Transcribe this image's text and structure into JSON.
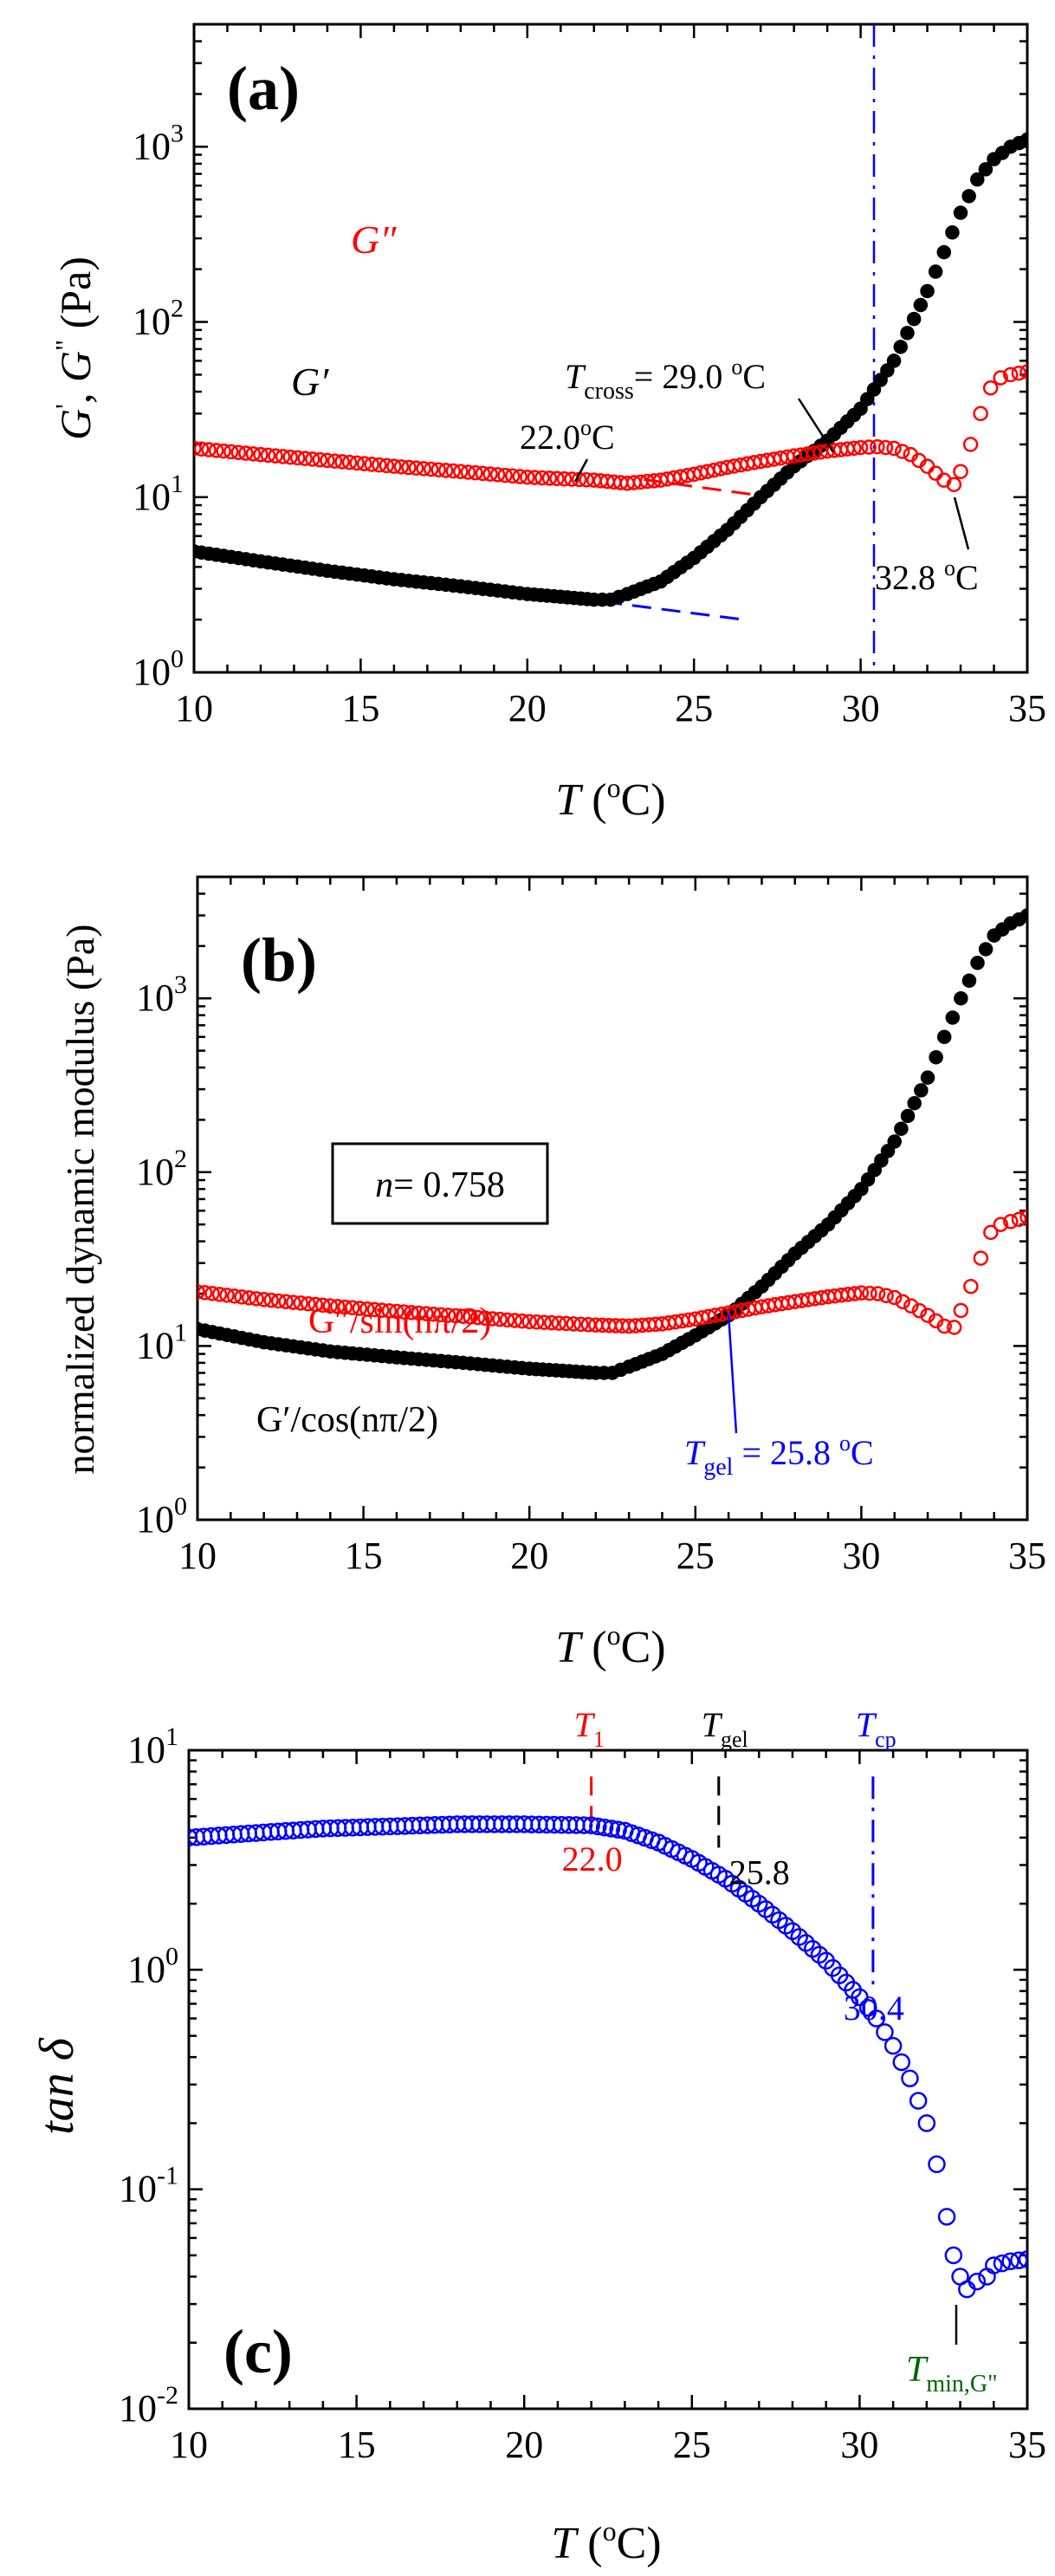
{
  "chart_data": [
    {
      "type": "scatter",
      "panel_label": "(a)",
      "xlabel": {
        "main": "T",
        "unit": " (",
        "sup": "o",
        "end": "C)"
      },
      "ylabel": {
        "g1": "G",
        "p1": "'",
        "sep": ", ",
        "g2": "G",
        "p2": "\"",
        "unit": " (Pa)"
      },
      "xlim": [
        10,
        35
      ],
      "ylim": [
        1,
        5000
      ],
      "yscale": "log",
      "xticks": [
        10,
        15,
        20,
        25,
        30,
        35
      ],
      "ytick_labels": [
        {
          "base": "10",
          "exp": "0",
          "value": 1
        },
        {
          "base": "10",
          "exp": "1",
          "value": 10
        },
        {
          "base": "10",
          "exp": "2",
          "value": 100
        },
        {
          "base": "10",
          "exp": "3",
          "value": 1000
        }
      ],
      "series": [
        {
          "name": "G′",
          "marker": "filled-circle",
          "color": "#000000",
          "points": [
            [
              10,
              4.9
            ],
            [
              12,
              4.3
            ],
            [
              14,
              3.8
            ],
            [
              16,
              3.4
            ],
            [
              18,
              3.1
            ],
            [
              20,
              2.8
            ],
            [
              21,
              2.7
            ],
            [
              22,
              2.6
            ],
            [
              22.5,
              2.6
            ],
            [
              23,
              2.8
            ],
            [
              24,
              3.3
            ],
            [
              25,
              4.5
            ],
            [
              26,
              6.5
            ],
            [
              27,
              10
            ],
            [
              28,
              15
            ],
            [
              29,
              21
            ],
            [
              30,
              32
            ],
            [
              31,
              60
            ],
            [
              32,
              150
            ],
            [
              32.5,
              250
            ],
            [
              33,
              420
            ],
            [
              33.5,
              650
            ],
            [
              34,
              850
            ],
            [
              34.5,
              1000
            ],
            [
              35,
              1100
            ]
          ]
        },
        {
          "name": "G″",
          "marker": "open-circle",
          "color": "#ff0000",
          "points": [
            [
              10,
              19
            ],
            [
              12,
              17.5
            ],
            [
              14,
              16.2
            ],
            [
              16,
              15
            ],
            [
              18,
              14
            ],
            [
              20,
              13
            ],
            [
              22,
              12.5
            ],
            [
              23,
              12
            ],
            [
              24,
              12.5
            ],
            [
              25,
              13.5
            ],
            [
              26,
              14.8
            ],
            [
              27,
              16
            ],
            [
              28,
              17.2
            ],
            [
              29,
              18.3
            ],
            [
              30,
              19.2
            ],
            [
              30.5,
              19.4
            ],
            [
              31,
              19
            ],
            [
              31.5,
              17.5
            ],
            [
              32,
              15
            ],
            [
              32.5,
              12.5
            ],
            [
              32.8,
              11.8
            ],
            [
              33,
              14
            ],
            [
              33.3,
              20
            ],
            [
              33.6,
              30
            ],
            [
              33.9,
              42
            ],
            [
              34.2,
              48
            ],
            [
              34.5,
              50
            ],
            [
              35,
              52
            ]
          ]
        }
      ],
      "series_labels": [
        {
          "text": "G″",
          "color": "#ff0000",
          "series": "G″"
        },
        {
          "text": "G′",
          "color": "#000000",
          "series": "G′"
        }
      ],
      "fit_lines": [
        {
          "color": "#0000ff",
          "style": "dashed",
          "from": [
            10,
            5.0
          ],
          "to": [
            26.5,
            2.0
          ]
        },
        {
          "color": "#ff0000",
          "style": "dashed",
          "from": [
            23.5,
            12.6
          ],
          "to": [
            27,
            10.2
          ]
        }
      ],
      "vlines": [
        {
          "x": 30.4,
          "color": "#0000ff",
          "style": "dash-dot"
        }
      ],
      "annotations": {
        "t1": "22.0",
        "t1_unit": "o",
        "t1_end": "C",
        "tcross_T": "T",
        "tcross_sub": "cross",
        "tcross_val": "= 29.0 ",
        "tcross_sup": "o",
        "tcross_end": "C",
        "tmin": "32.8 ",
        "tmin_sup": "o",
        "tmin_end": "C"
      }
    },
    {
      "type": "scatter",
      "panel_label": "(b)",
      "xlabel": {
        "main": "T",
        "unit": " (",
        "sup": "o",
        "end": "C)"
      },
      "ylabel": "normalized dynamic modulus (Pa)",
      "xlim": [
        10,
        35
      ],
      "ylim": [
        1,
        5000
      ],
      "yscale": "log",
      "xticks": [
        10,
        15,
        20,
        25,
        30,
        35
      ],
      "ytick_labels": [
        {
          "base": "10",
          "exp": "0",
          "value": 1
        },
        {
          "base": "10",
          "exp": "1",
          "value": 10
        },
        {
          "base": "10",
          "exp": "2",
          "value": 100
        },
        {
          "base": "10",
          "exp": "3",
          "value": 1000
        }
      ],
      "series": [
        {
          "name": "G′/cos(nπ/2)",
          "marker": "filled-circle",
          "color": "#000000",
          "points": [
            [
              10,
              12.5
            ],
            [
              12,
              10.5
            ],
            [
              14,
              9.3
            ],
            [
              16,
              8.6
            ],
            [
              18,
              8.0
            ],
            [
              20,
              7.4
            ],
            [
              21,
              7.2
            ],
            [
              22,
              7.0
            ],
            [
              22.5,
              7.0
            ],
            [
              23,
              7.6
            ],
            [
              24,
              9
            ],
            [
              25,
              11.5
            ],
            [
              26,
              15
            ],
            [
              27,
              22
            ],
            [
              28,
              34
            ],
            [
              29,
              50
            ],
            [
              30,
              80
            ],
            [
              31,
              150
            ],
            [
              32,
              350
            ],
            [
              32.5,
              600
            ],
            [
              33,
              1000
            ],
            [
              33.5,
              1600
            ],
            [
              34,
              2300
            ],
            [
              34.5,
              2700
            ],
            [
              35,
              3000
            ]
          ]
        },
        {
          "name": "G″/sin(nπ/2)",
          "marker": "open-circle",
          "color": "#ff0000",
          "points": [
            [
              10,
              20.5
            ],
            [
              12,
              18.5
            ],
            [
              14,
              17
            ],
            [
              16,
              15.8
            ],
            [
              18,
              14.8
            ],
            [
              20,
              13.8
            ],
            [
              22,
              13.2
            ],
            [
              23,
              13
            ],
            [
              24,
              13.4
            ],
            [
              25,
              14.3
            ],
            [
              26,
              15.5
            ],
            [
              27,
              16.8
            ],
            [
              28,
              18
            ],
            [
              29,
              19.2
            ],
            [
              30,
              20.2
            ],
            [
              30.5,
              20
            ],
            [
              31,
              19
            ],
            [
              31.5,
              17
            ],
            [
              32,
              15
            ],
            [
              32.5,
              13
            ],
            [
              32.8,
              12.8
            ],
            [
              33,
              16
            ],
            [
              33.3,
              22
            ],
            [
              33.6,
              32
            ],
            [
              33.9,
              45
            ],
            [
              34.2,
              50
            ],
            [
              34.5,
              52
            ],
            [
              35,
              55
            ]
          ]
        }
      ],
      "legend_box": {
        "n": "n",
        "value": "= 0.758"
      },
      "series_labels": [
        {
          "text": "G″/sin(nπ/2)",
          "color": "#ff0000",
          "series": "G″/sin(nπ/2)"
        },
        {
          "text": "G′/cos(nπ/2)",
          "color": "#000000",
          "series": "G′/cos(nπ/2)"
        }
      ],
      "annotations": {
        "tgel_T": "T",
        "tgel_sub": "gel",
        "tgel_val": " = 25.8 ",
        "tgel_sup": "o",
        "tgel_end": "C",
        "tgel_x": 26.0
      }
    },
    {
      "type": "scatter",
      "panel_label": "(c)",
      "xlabel": {
        "main": "T",
        "unit": " (",
        "sup": "o",
        "end": "C)"
      },
      "ylabel": "tan δ",
      "xlim": [
        10,
        35
      ],
      "ylim": [
        0.01,
        10
      ],
      "yscale": "log",
      "xticks": [
        10,
        15,
        20,
        25,
        30,
        35
      ],
      "ytick_labels": [
        {
          "base": "10",
          "exp": "-2",
          "value": 0.01
        },
        {
          "base": "10",
          "exp": "-1",
          "value": 0.1
        },
        {
          "base": "10",
          "exp": "0",
          "value": 1
        },
        {
          "base": "10",
          "exp": "1",
          "value": 10
        }
      ],
      "series": [
        {
          "name": "tan δ",
          "marker": "open-circle",
          "color": "#0000ff",
          "points": [
            [
              10,
              4.0
            ],
            [
              12,
              4.2
            ],
            [
              14,
              4.4
            ],
            [
              16,
              4.5
            ],
            [
              18,
              4.6
            ],
            [
              20,
              4.6
            ],
            [
              22,
              4.55
            ],
            [
              23,
              4.3
            ],
            [
              24,
              3.8
            ],
            [
              25,
              3.2
            ],
            [
              26,
              2.6
            ],
            [
              27,
              2.0
            ],
            [
              28,
              1.5
            ],
            [
              29,
              1.1
            ],
            [
              30,
              0.75
            ],
            [
              30.5,
              0.6
            ],
            [
              31,
              0.45
            ],
            [
              31.5,
              0.32
            ],
            [
              32,
              0.2
            ],
            [
              32.3,
              0.13
            ],
            [
              32.6,
              0.075
            ],
            [
              32.8,
              0.05
            ],
            [
              33,
              0.04
            ],
            [
              33.2,
              0.035
            ],
            [
              33.5,
              0.038
            ],
            [
              33.8,
              0.04
            ],
            [
              34,
              0.045
            ],
            [
              34.5,
              0.047
            ],
            [
              35,
              0.048
            ]
          ]
        }
      ],
      "vmarkers": [
        {
          "x": 22.0,
          "color": "#ff0000",
          "style": "dashed",
          "label_T": "T",
          "label_sub": "1",
          "value": "22.0"
        },
        {
          "x": 25.8,
          "color": "#000000",
          "style": "dashed",
          "label_T": "T",
          "label_sub": "gel",
          "value": "25.8"
        },
        {
          "x": 30.4,
          "color": "#0000ff",
          "style": "dash-dot",
          "label_T": "T",
          "label_sub": "cp",
          "value": "30.4"
        }
      ],
      "annotations": {
        "tmin_T": "T",
        "tmin_sub": "min,G\"",
        "tmin_color": "#006400"
      }
    }
  ]
}
